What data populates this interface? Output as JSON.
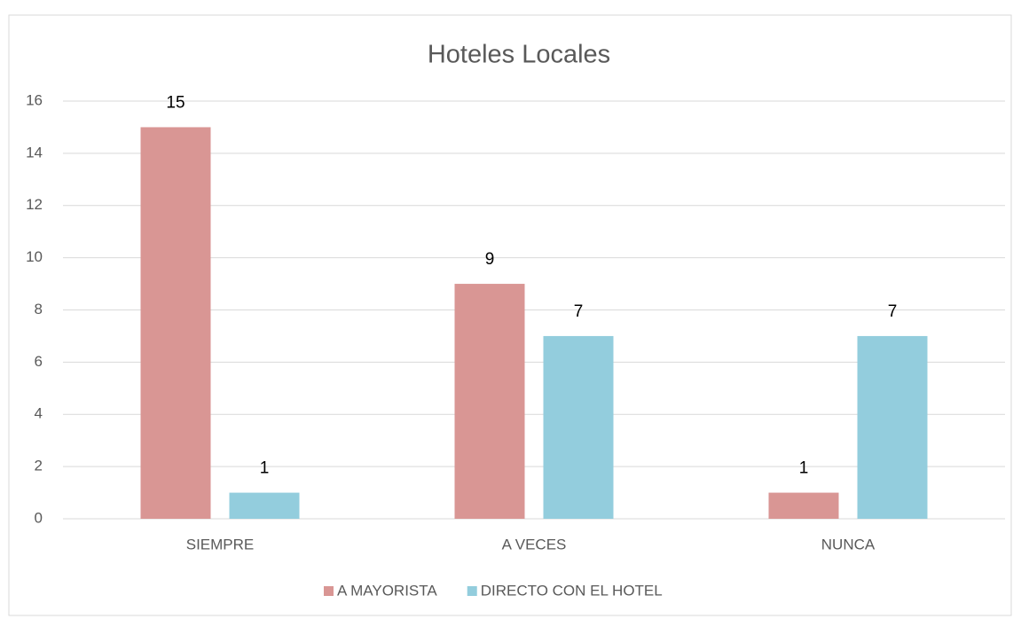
{
  "chart_data": {
    "type": "bar",
    "title": "Hoteles Locales",
    "categories": [
      "SIEMPRE",
      "A VECES",
      "NUNCA"
    ],
    "series": [
      {
        "name": "A MAYORISTA",
        "color": "#d99694",
        "values": [
          15,
          9,
          1
        ]
      },
      {
        "name": "DIRECTO CON EL HOTEL",
        "color": "#93cddd",
        "values": [
          1,
          7,
          7
        ]
      }
    ],
    "ylim": [
      0,
      16
    ],
    "yticks": [
      0,
      2,
      4,
      6,
      8,
      10,
      12,
      14,
      16
    ],
    "grid": true,
    "legend": "bottom"
  }
}
